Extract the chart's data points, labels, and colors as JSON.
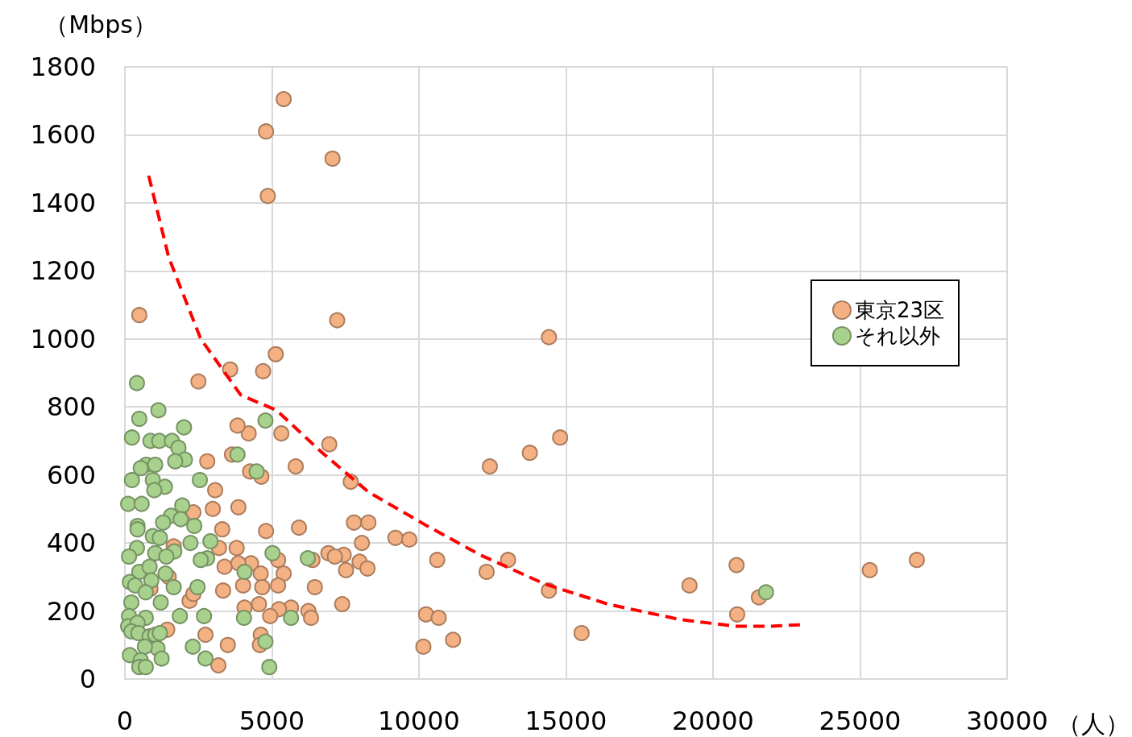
{
  "chart_data": {
    "type": "scatter",
    "xlabel": "（人）",
    "ylabel": "（Mbps）",
    "xlim": [
      0,
      30000
    ],
    "xticks": [
      0,
      5000,
      10000,
      15000,
      20000,
      25000,
      30000
    ],
    "ylim": [
      0,
      1800
    ],
    "yticks": [
      0,
      200,
      400,
      600,
      800,
      1000,
      1200,
      1400,
      1600,
      1800
    ],
    "grid": true,
    "legend": "right",
    "marker": "circle",
    "series": [
      {
        "name": "東京23区",
        "color": "#f4b183",
        "x": [
          5400,
          4800,
          7060,
          4860,
          490,
          7220,
          14420,
          5130,
          2500,
          3580,
          4700,
          14800,
          6950,
          13770,
          12410,
          5810,
          2800,
          3640,
          5320,
          4210,
          3830,
          7680,
          4260,
          4640,
          3070,
          3860,
          2990,
          2330,
          5920,
          4800,
          3310,
          7790,
          8280,
          8060,
          9200,
          9670,
          10620,
          13030,
          6920,
          7440,
          7140,
          7980,
          8250,
          7520,
          6380,
          5210,
          3800,
          3200,
          4290,
          3860,
          3390,
          4620,
          5400,
          6460,
          5210,
          4670,
          4020,
          3340,
          4560,
          5650,
          6240,
          5240,
          4070,
          6330,
          4940,
          2200,
          2330,
          12300,
          14420,
          19200,
          20800,
          21560,
          20820,
          25330,
          26930,
          15530,
          10150,
          11160,
          10240,
          10670,
          7390,
          4620,
          4590,
          3500,
          3180,
          2740,
          1440,
          1490,
          1660,
          870
        ],
        "values": [
          1705,
          1610,
          1530,
          1420,
          1070,
          1055,
          1005,
          955,
          875,
          910,
          905,
          710,
          690,
          665,
          625,
          625,
          640,
          660,
          722,
          722,
          745,
          580,
          610,
          595,
          555,
          505,
          500,
          490,
          445,
          435,
          440,
          460,
          460,
          400,
          415,
          410,
          350,
          350,
          370,
          365,
          360,
          345,
          325,
          320,
          350,
          350,
          385,
          385,
          340,
          340,
          330,
          310,
          310,
          270,
          275,
          270,
          275,
          260,
          220,
          210,
          200,
          205,
          210,
          180,
          185,
          230,
          250,
          315,
          260,
          275,
          335,
          240,
          190,
          320,
          350,
          135,
          95,
          115,
          190,
          180,
          220,
          130,
          100,
          100,
          40,
          130,
          145,
          300,
          390,
          265
        ]
      },
      {
        "name": "それ以外",
        "color": "#a9d18e",
        "x": [
          410,
          490,
          1140,
          240,
          870,
          1170,
          1600,
          2010,
          1820,
          2040,
          1710,
          730,
          540,
          1030,
          240,
          950,
          1360,
          1000,
          2550,
          3830,
          4480,
          4780,
          110,
          570,
          1950,
          1570,
          1900,
          1300,
          430,
          430,
          2360,
          2230,
          2910,
          950,
          1190,
          410,
          1680,
          1030,
          1410,
          2800,
          2580,
          140,
          5020,
          6220,
          4070,
          490,
          840,
          1380,
          900,
          170,
          350,
          1660,
          2470,
          1220,
          220,
          710,
          140,
          710,
          1870,
          2690,
          4050,
          5650,
          110,
          430,
          220,
          460,
          840,
          1030,
          1190,
          1110,
          680,
          1250,
          2310,
          2740,
          4780,
          170,
          540,
          490,
          710,
          4910,
          21800
        ],
        "values": [
          870,
          765,
          790,
          710,
          700,
          700,
          700,
          740,
          680,
          645,
          640,
          630,
          620,
          630,
          585,
          585,
          565,
          555,
          585,
          660,
          610,
          760,
          515,
          515,
          510,
          480,
          470,
          460,
          450,
          440,
          450,
          400,
          405,
          420,
          415,
          385,
          375,
          370,
          360,
          355,
          350,
          360,
          370,
          355,
          315,
          315,
          330,
          310,
          290,
          285,
          275,
          270,
          270,
          225,
          225,
          255,
          185,
          180,
          185,
          185,
          180,
          180,
          155,
          165,
          140,
          135,
          125,
          130,
          135,
          90,
          95,
          60,
          95,
          60,
          110,
          70,
          55,
          35,
          35,
          35,
          255
        ]
      },
      {
        "type": "line",
        "color": "#ff0000",
        "line_style": "dashed",
        "marker": "none",
        "x": [
          810,
          1490,
          2580,
          3940,
          5160,
          6650,
          8280,
          10180,
          12080,
          14260,
          16430,
          18870,
          20780,
          21870,
          23090
        ],
        "values": [
          1480,
          1240,
          1000,
          835,
          790,
          670,
          550,
          455,
          365,
          280,
          220,
          175,
          155,
          155,
          160
        ]
      }
    ]
  }
}
